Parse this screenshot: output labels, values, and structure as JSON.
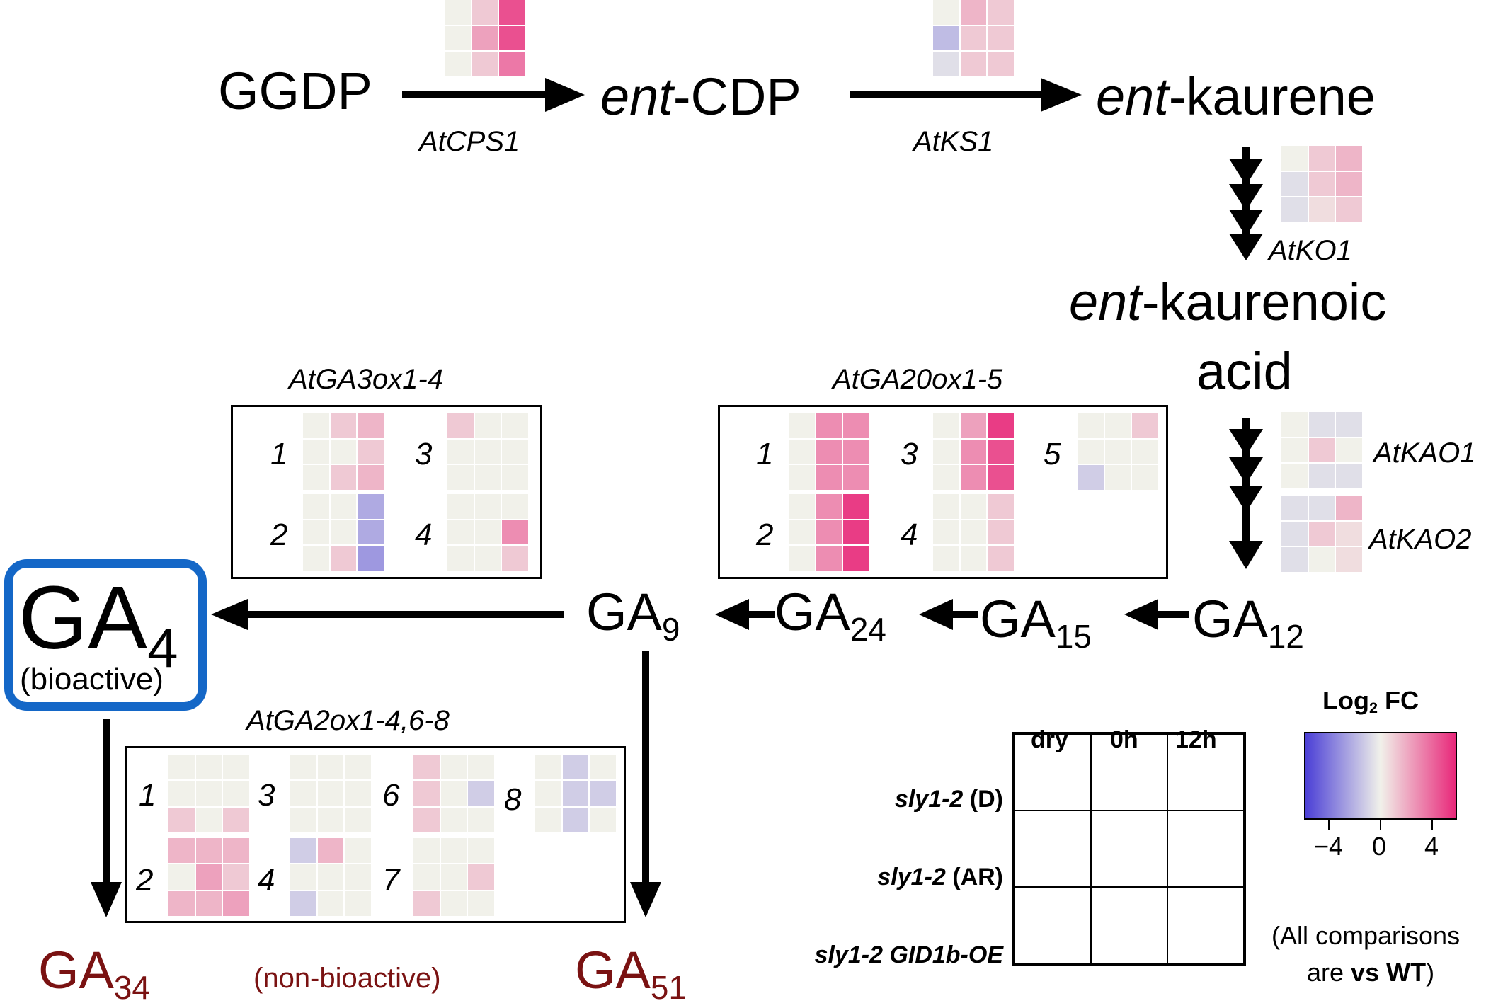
{
  "compounds": {
    "ggdp": "GGDP",
    "ent_cdp_italic": "ent",
    "ent_cdp_rest": "-CDP",
    "ent_kaurene_italic": "ent",
    "ent_kaurene_rest": "-kaurene",
    "ent_kaurenoic_italic": "ent",
    "ent_kaurenoic_rest": "-kaurenoic",
    "acid": "acid",
    "ga4_base": "GA",
    "ga4_sub": "4",
    "bioactive": "(bioactive)",
    "ga9_base": "GA",
    "ga9_sub": "9",
    "ga24_base": "GA",
    "ga24_sub": "24",
    "ga15_base": "GA",
    "ga15_sub": "15",
    "ga12_base": "GA",
    "ga12_sub": "12",
    "ga34_base": "GA",
    "ga34_sub": "34",
    "ga51_base": "GA",
    "ga51_sub": "51",
    "non_bioactive": "(non-bioactive)"
  },
  "genes": {
    "cps1": "AtCPS1",
    "ks1": "AtKS1",
    "ko1": "AtKO1",
    "kao1": "AtKAO1",
    "kao2": "AtKAO2",
    "ga3ox": "AtGA3ox1-4",
    "ga20ox": "AtGA20ox1-5",
    "ga2ox": "AtGA2ox1-4,6-8"
  },
  "gene_numbers": {
    "ga3ox": [
      "1",
      "2",
      "3",
      "4"
    ],
    "ga20ox": [
      "1",
      "2",
      "3",
      "4",
      "5"
    ],
    "ga2ox": [
      "1",
      "2",
      "3",
      "4",
      "6",
      "7",
      "8"
    ]
  },
  "heatmaps": {
    "cps1": [
      [
        0,
        1,
        4
      ],
      [
        0,
        2,
        4
      ],
      [
        0,
        1,
        3
      ]
    ],
    "ks1": [
      [
        0,
        1.5,
        1
      ],
      [
        -1.5,
        1,
        1
      ],
      [
        -0.5,
        1,
        1
      ]
    ],
    "ko1": [
      [
        0,
        1,
        1.5
      ],
      [
        -0.5,
        1,
        1.5
      ],
      [
        -0.5,
        0.5,
        1
      ]
    ],
    "kao1": [
      [
        0,
        -0.5,
        -0.5
      ],
      [
        0,
        1,
        0
      ],
      [
        0,
        -0.5,
        -0.5
      ]
    ],
    "kao2": [
      [
        -0.5,
        -0.5,
        1.5
      ],
      [
        -0.5,
        1,
        0.5
      ],
      [
        -0.5,
        0,
        0.5
      ]
    ],
    "ga3ox_1": [
      [
        0,
        1,
        1.5
      ],
      [
        0,
        0,
        1
      ],
      [
        0,
        1,
        1.5
      ]
    ],
    "ga3ox_2": [
      [
        0,
        0,
        -2
      ],
      [
        0,
        0,
        -2
      ],
      [
        0,
        1,
        -2.5
      ]
    ],
    "ga3ox_3": [
      [
        1,
        0,
        0
      ],
      [
        0,
        0,
        0
      ],
      [
        0,
        0,
        0
      ]
    ],
    "ga3ox_4": [
      [
        0,
        0,
        0
      ],
      [
        0,
        0,
        2.5
      ],
      [
        0,
        0,
        1
      ]
    ],
    "ga20ox_1": [
      [
        0,
        2.5,
        2.5
      ],
      [
        0,
        2.5,
        2.5
      ],
      [
        0,
        2.5,
        2.5
      ]
    ],
    "ga20ox_2": [
      [
        0,
        2.5,
        4.5
      ],
      [
        0,
        2.5,
        4.5
      ],
      [
        0,
        2.5,
        4.5
      ]
    ],
    "ga20ox_3": [
      [
        0,
        2,
        4.5
      ],
      [
        0,
        2.5,
        4
      ],
      [
        0,
        2.5,
        4
      ]
    ],
    "ga20ox_4": [
      [
        0,
        0,
        1
      ],
      [
        0,
        0,
        1
      ],
      [
        0,
        0,
        1
      ]
    ],
    "ga20ox_5": [
      [
        0,
        0,
        1
      ],
      [
        0,
        0,
        0
      ],
      [
        -1,
        0,
        0
      ]
    ],
    "ga2ox_1": [
      [
        0,
        0,
        0
      ],
      [
        0,
        0,
        0
      ],
      [
        1,
        0,
        1
      ]
    ],
    "ga2ox_2": [
      [
        1.5,
        1.5,
        1.5
      ],
      [
        0,
        2,
        1
      ],
      [
        1.5,
        1.5,
        2
      ]
    ],
    "ga2ox_3": [
      [
        0,
        0,
        0
      ],
      [
        0,
        0,
        0
      ],
      [
        0,
        0,
        0
      ]
    ],
    "ga2ox_4": [
      [
        -1,
        1.5,
        0
      ],
      [
        0,
        0,
        0
      ],
      [
        -1,
        0,
        0
      ]
    ],
    "ga2ox_6": [
      [
        1,
        0,
        0
      ],
      [
        1,
        0,
        -1
      ],
      [
        1,
        0,
        0
      ]
    ],
    "ga2ox_7": [
      [
        0,
        0,
        0
      ],
      [
        0,
        0,
        1
      ],
      [
        1,
        0,
        0
      ]
    ],
    "ga2ox_8": [
      [
        0,
        -1,
        0
      ],
      [
        0,
        -1,
        -1
      ],
      [
        0,
        -1,
        0
      ]
    ]
  },
  "legend": {
    "columns": [
      "dry",
      "0h",
      "12h"
    ],
    "rows": [
      {
        "italic": "sly1-2",
        "rest": " (D)"
      },
      {
        "italic": "sly1-2",
        "rest": " (AR)"
      },
      {
        "italic": "sly1-2 GID1b-OE",
        "rest": ""
      }
    ],
    "scale_title": "Log",
    "scale_title_sub": "2",
    "scale_title_rest": " FC",
    "scale_ticks": [
      "−4",
      "0",
      "4"
    ],
    "scale_min": -5,
    "scale_max": 5,
    "note_line1": "(All comparisons",
    "note_line2_prefix": "are ",
    "note_line2_bold": "vs WT",
    "note_line2_suffix": ")"
  },
  "colors": {
    "neutral": "#f1f1ea",
    "pos": "#e8287a",
    "neg": "#4b3fd6",
    "ga4_border": "#1467c7",
    "dark_red": "#7a1212"
  }
}
